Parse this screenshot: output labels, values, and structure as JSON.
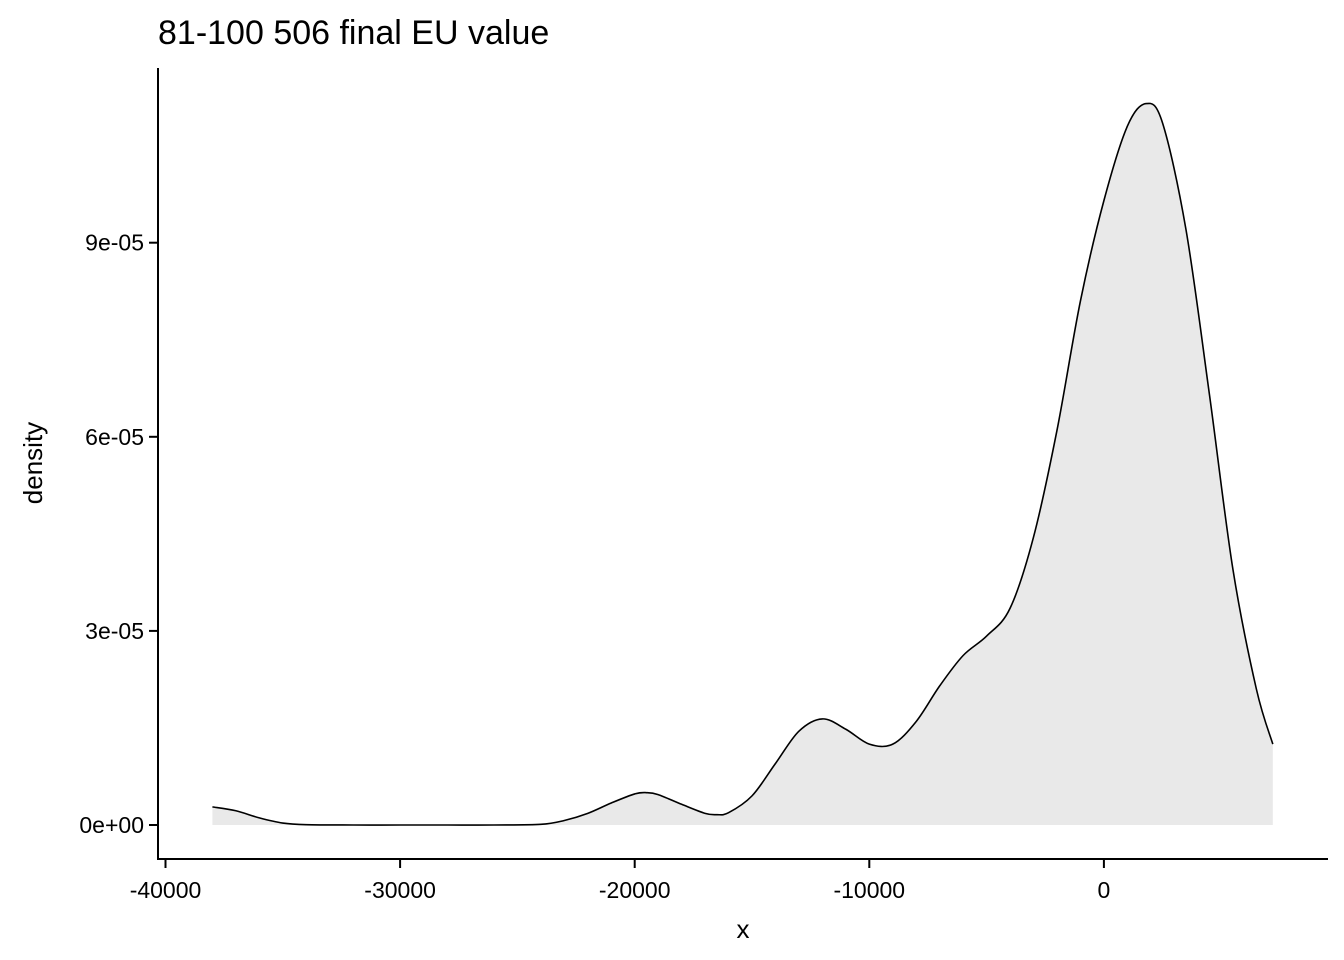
{
  "chart_data": {
    "type": "area",
    "title": "81-100 506 final EU value",
    "xlabel": "x",
    "ylabel": "density",
    "xlim": [
      -40000,
      7000
    ],
    "ylim": [
      0,
      0.00011
    ],
    "grid": false,
    "legend": "none",
    "fill_color": "#e9e9e9",
    "line_color": "#000000",
    "x_ticks": [
      {
        "value": -40000,
        "label": "-40000"
      },
      {
        "value": -30000,
        "label": "-30000"
      },
      {
        "value": -20000,
        "label": "-20000"
      },
      {
        "value": -10000,
        "label": "-10000"
      },
      {
        "value": 0,
        "label": "0"
      }
    ],
    "y_ticks": [
      {
        "value": 0,
        "label": "0e+00"
      },
      {
        "value": 3e-05,
        "label": "3e-05"
      },
      {
        "value": 6e-05,
        "label": "6e-05"
      },
      {
        "value": 9e-05,
        "label": "9e-05"
      }
    ],
    "x": [
      -38000,
      -37000,
      -36000,
      -35000,
      -34000,
      -32000,
      -30000,
      -28000,
      -26000,
      -24000,
      -23000,
      -22000,
      -21000,
      -20000,
      -19500,
      -19000,
      -18000,
      -17000,
      -16500,
      -16000,
      -15000,
      -14000,
      -13000,
      -12000,
      -11000,
      -10000,
      -9000,
      -8000,
      -7000,
      -6000,
      -5000,
      -4000,
      -3000,
      -2000,
      -1000,
      0,
      1000,
      1800,
      2500,
      3500,
      4500,
      5500,
      6500,
      7200
    ],
    "y": [
      2.8e-06,
      2.2e-06,
      1.1e-06,
      3e-07,
      5e-08,
      0.0,
      0.0,
      0.0,
      0.0,
      1e-07,
      7e-07,
      1.8e-06,
      3.4e-06,
      4.8e-06,
      5e-06,
      4.7e-06,
      3.2e-06,
      1.8e-06,
      1.6e-06,
      1.9e-06,
      4.5e-06,
      9.5e-06,
      1.45e-05,
      1.64e-05,
      1.48e-05,
      1.25e-05,
      1.25e-05,
      1.6e-05,
      2.15e-05,
      2.62e-05,
      2.92e-05,
      3.35e-05,
      4.45e-05,
      6.1e-05,
      8.1e-05,
      9.65e-05,
      0.000108,
      0.0001115,
      0.0001085,
      9.2e-05,
      6.65e-05,
      3.95e-05,
      2.1e-05,
      1.25e-05
    ]
  }
}
